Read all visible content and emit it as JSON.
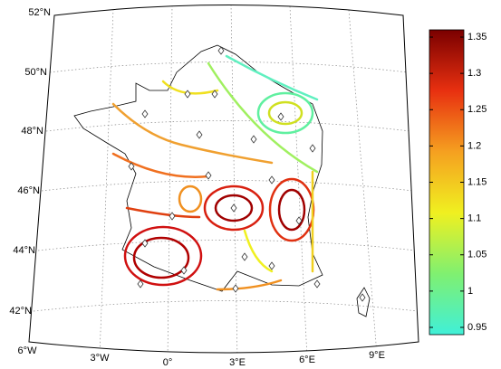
{
  "map": {
    "lat_labels": [
      "52°N",
      "50°N",
      "48°N",
      "46°N",
      "44°N",
      "42°N"
    ],
    "lon_labels": [
      "6°W",
      "3°W",
      "0°",
      "3°E",
      "6°E",
      "9°E"
    ],
    "colorbar": {
      "lim": [
        0.94,
        1.36
      ],
      "ticks": [
        0.95,
        1,
        1.05,
        1.1,
        1.15,
        1.2,
        1.25,
        1.3,
        1.35
      ]
    }
  }
}
